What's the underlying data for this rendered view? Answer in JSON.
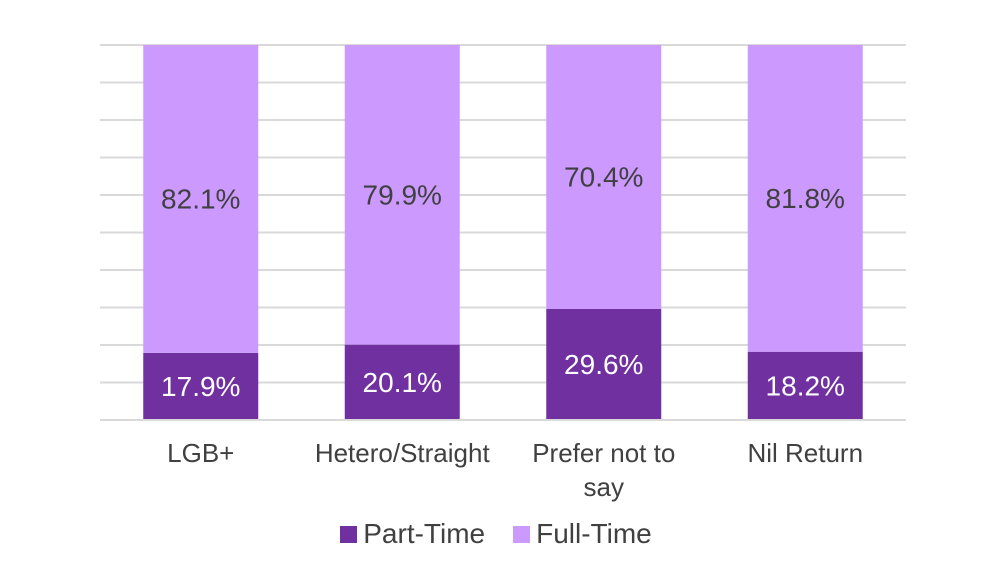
{
  "chart_data": {
    "type": "bar",
    "stacked": true,
    "percent_stacked": true,
    "categories": [
      "LGB+",
      "Hetero/Straight",
      "Prefer not to say",
      "Nil Return"
    ],
    "category_label_lines": [
      [
        "LGB+"
      ],
      [
        "Hetero/Straight"
      ],
      [
        "Prefer not to",
        "say"
      ],
      [
        "Nil Return"
      ]
    ],
    "series": [
      {
        "name": "Part-Time",
        "values": [
          17.9,
          20.1,
          29.6,
          18.2
        ],
        "labels": [
          "17.9%",
          "20.1%",
          "29.6%",
          "18.2%"
        ],
        "color": "#7030a0",
        "label_color": "#ffffff"
      },
      {
        "name": "Full-Time",
        "values": [
          82.1,
          79.9,
          70.4,
          81.8
        ],
        "labels": [
          "82.1%",
          "79.9%",
          "70.4%",
          "81.8%"
        ],
        "color": "#cc99ff",
        "label_color": "#404040"
      }
    ],
    "ylim": [
      0,
      100
    ],
    "grid": true,
    "gridline_count": 10,
    "gridline_color": "#d9d9d9",
    "axis_text_color": "#404040",
    "legend_position": "bottom",
    "title": "",
    "xlabel": "",
    "ylabel": ""
  },
  "legend": {
    "items": [
      {
        "label": "Part-Time",
        "color": "#7030a0"
      },
      {
        "label": "Full-Time",
        "color": "#cc99ff"
      }
    ]
  }
}
